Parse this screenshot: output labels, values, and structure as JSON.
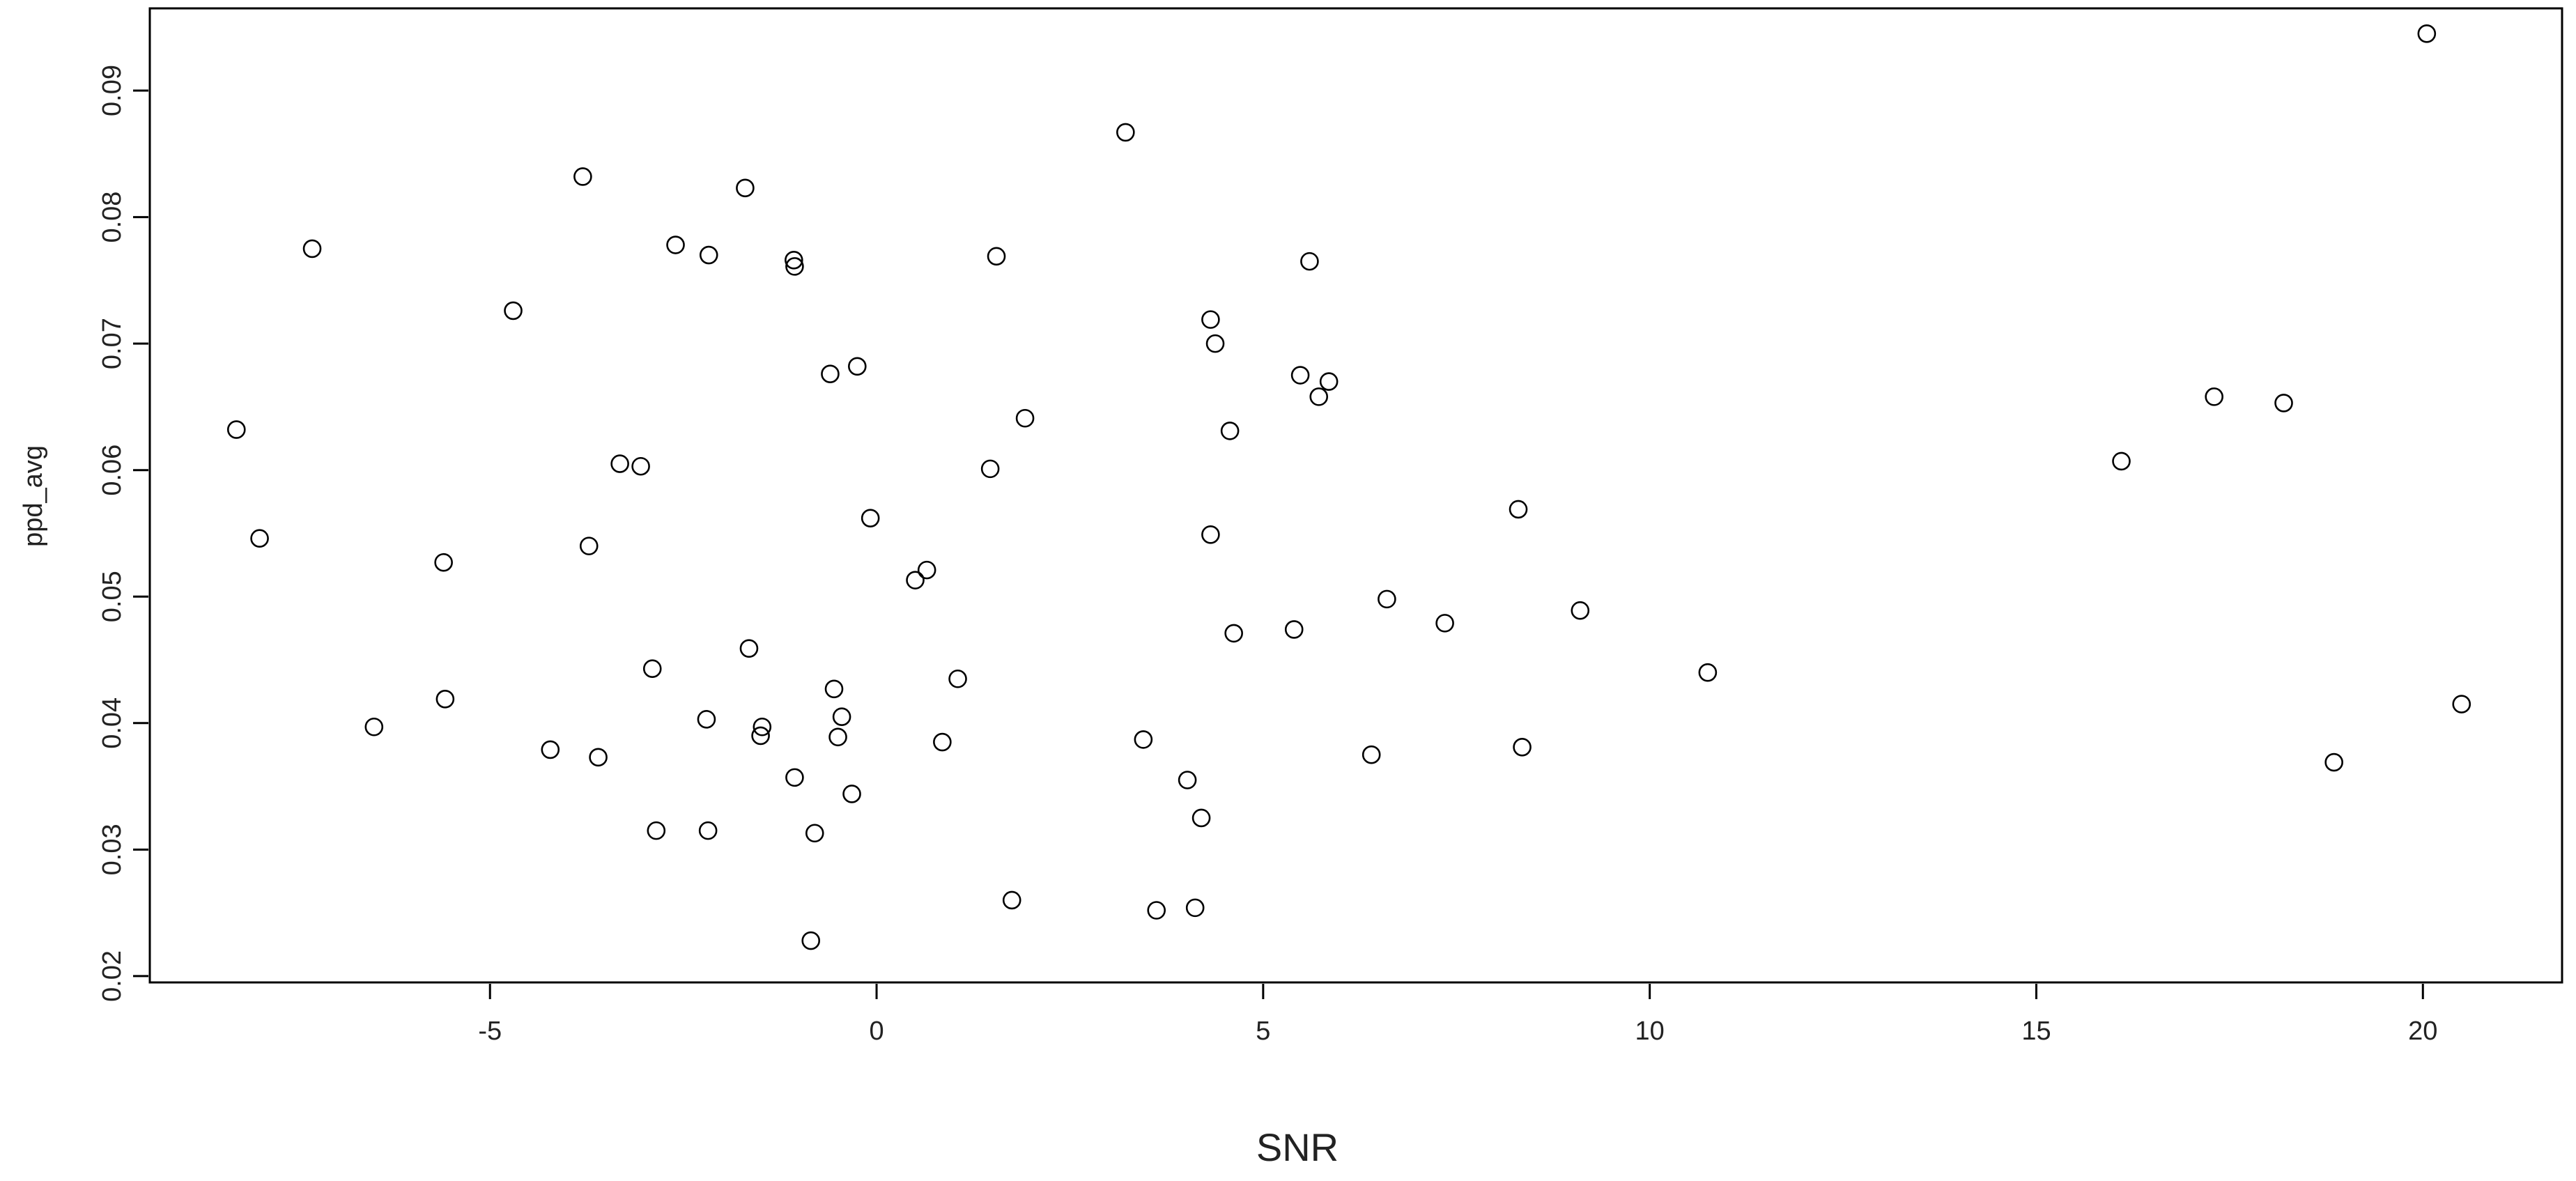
{
  "chart_data": {
    "type": "scatter",
    "title": "",
    "xlabel": "SNR",
    "ylabel": "ppd_avg",
    "xlim": [
      -9.4,
      21.8
    ],
    "ylim": [
      0.0195,
      0.0965
    ],
    "x_ticks": [
      -5,
      0,
      5,
      10,
      15,
      20
    ],
    "x_tick_labels": [
      "-5",
      "0",
      "5",
      "10",
      "15",
      "20"
    ],
    "y_ticks": [
      0.02,
      0.03,
      0.04,
      0.05,
      0.06,
      0.07,
      0.08,
      0.09
    ],
    "y_tick_labels": [
      "0.02",
      "0.03",
      "0.04",
      "0.05",
      "0.06",
      "0.07",
      "0.08",
      "0.09"
    ],
    "grid": false,
    "legend": "none",
    "marker": "open-circle",
    "marker_color": "#000000",
    "series": [
      {
        "points": [
          [
            -8.28,
            0.0632
          ],
          [
            -7.98,
            0.0546
          ],
          [
            -7.3,
            0.0775
          ],
          [
            -6.5,
            0.0397
          ],
          [
            -5.6,
            0.0527
          ],
          [
            -5.58,
            0.0419
          ],
          [
            -4.7,
            0.0726
          ],
          [
            -4.22,
            0.0379
          ],
          [
            -3.8,
            0.0832
          ],
          [
            -3.72,
            0.054
          ],
          [
            -3.6,
            0.0373
          ],
          [
            -3.32,
            0.0605
          ],
          [
            -3.05,
            0.0603
          ],
          [
            -2.9,
            0.0443
          ],
          [
            -2.85,
            0.0315
          ],
          [
            -2.6,
            0.0778
          ],
          [
            -2.2,
            0.0403
          ],
          [
            -2.18,
            0.0315
          ],
          [
            -2.17,
            0.077
          ],
          [
            -1.7,
            0.0823
          ],
          [
            -1.65,
            0.0459
          ],
          [
            -1.5,
            0.039
          ],
          [
            -1.48,
            0.0397
          ],
          [
            -1.07,
            0.0766
          ],
          [
            -1.06,
            0.0761
          ],
          [
            -1.06,
            0.0357
          ],
          [
            -0.85,
            0.0228
          ],
          [
            -0.8,
            0.0313
          ],
          [
            -0.6,
            0.0676
          ],
          [
            -0.55,
            0.0427
          ],
          [
            -0.5,
            0.0389
          ],
          [
            -0.45,
            0.0405
          ],
          [
            -0.32,
            0.0344
          ],
          [
            -0.25,
            0.0682
          ],
          [
            -0.08,
            0.0562
          ],
          [
            0.5,
            0.0513
          ],
          [
            0.65,
            0.0521
          ],
          [
            0.85,
            0.0385
          ],
          [
            1.05,
            0.0435
          ],
          [
            1.47,
            0.0601
          ],
          [
            1.55,
            0.0769
          ],
          [
            1.75,
            0.026
          ],
          [
            1.92,
            0.0641
          ],
          [
            3.22,
            0.0867
          ],
          [
            3.45,
            0.0387
          ],
          [
            3.62,
            0.0252
          ],
          [
            4.02,
            0.0355
          ],
          [
            4.12,
            0.0254
          ],
          [
            4.2,
            0.0325
          ],
          [
            4.32,
            0.0719
          ],
          [
            4.32,
            0.0549
          ],
          [
            4.38,
            0.07
          ],
          [
            4.57,
            0.0631
          ],
          [
            4.62,
            0.0471
          ],
          [
            5.4,
            0.0474
          ],
          [
            5.48,
            0.0675
          ],
          [
            5.6,
            0.0765
          ],
          [
            5.72,
            0.0658
          ],
          [
            5.85,
            0.067
          ],
          [
            6.4,
            0.0375
          ],
          [
            6.6,
            0.0498
          ],
          [
            7.35,
            0.0479
          ],
          [
            8.3,
            0.0569
          ],
          [
            8.35,
            0.0381
          ],
          [
            9.1,
            0.0489
          ],
          [
            10.75,
            0.044
          ],
          [
            16.1,
            0.0607
          ],
          [
            17.3,
            0.0658
          ],
          [
            18.2,
            0.0653
          ],
          [
            18.85,
            0.0369
          ],
          [
            20.05,
            0.0945
          ],
          [
            20.5,
            0.0415
          ]
        ]
      }
    ]
  }
}
